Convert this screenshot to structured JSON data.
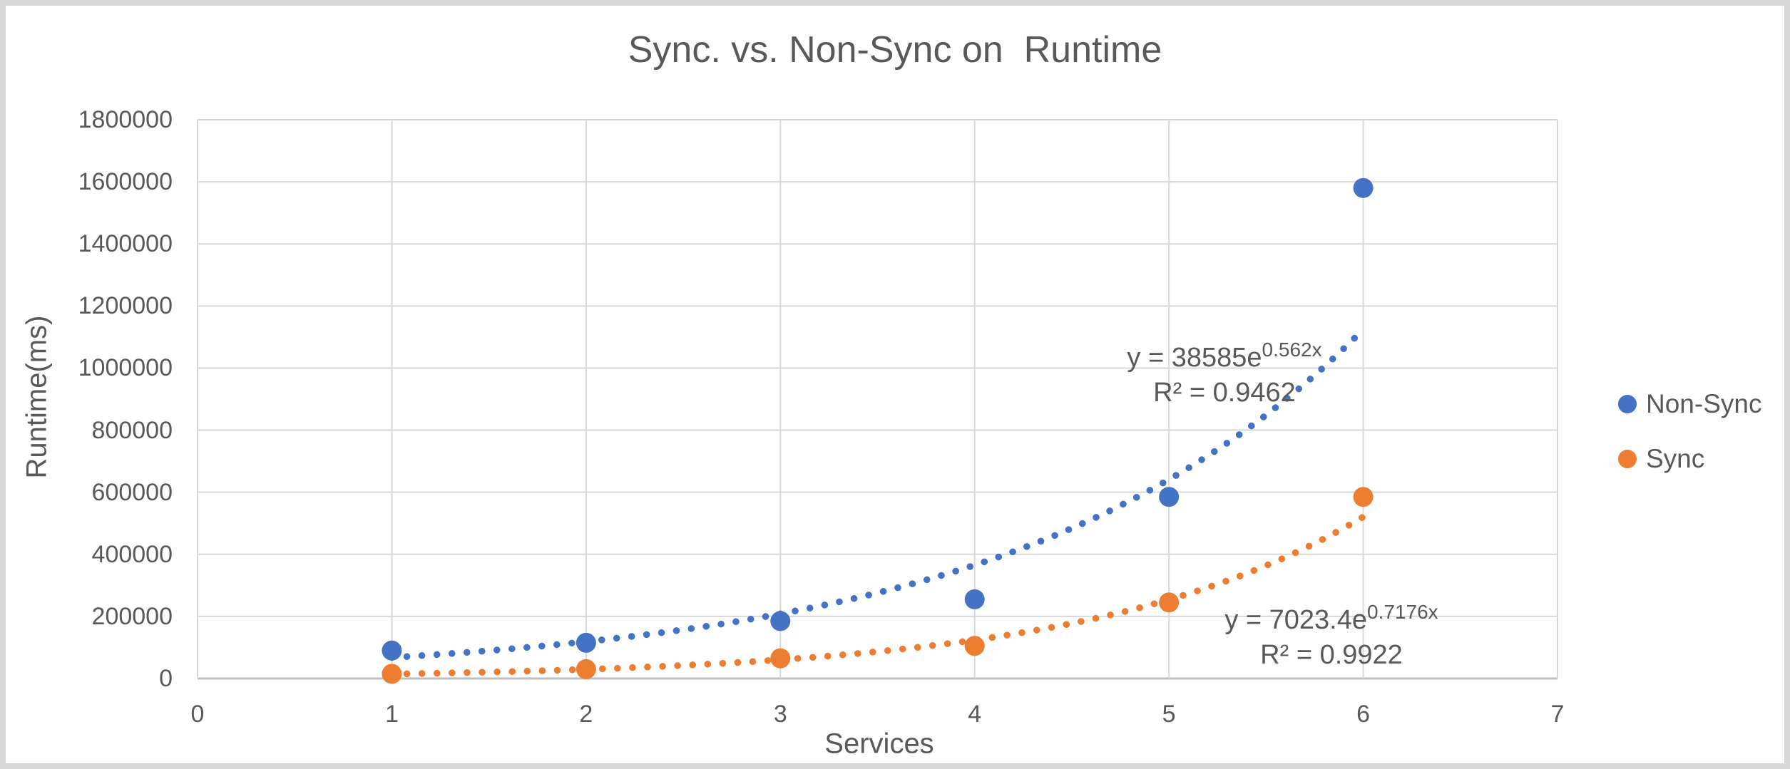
{
  "chart_data": {
    "type": "scatter",
    "title": "Sync. vs. Non-Sync on  Runtime",
    "xlabel": "Services",
    "ylabel": "Runtime(ms)",
    "xlim": [
      0,
      7
    ],
    "ylim": [
      0,
      1800000
    ],
    "x_ticks": [
      0,
      1,
      2,
      3,
      4,
      5,
      6,
      7
    ],
    "y_ticks": [
      0,
      200000,
      400000,
      600000,
      800000,
      1000000,
      1200000,
      1400000,
      1600000,
      1800000
    ],
    "grid": true,
    "legend_position": "right",
    "x": [
      1,
      2,
      3,
      4,
      5,
      6
    ],
    "series": [
      {
        "name": "Non-Sync",
        "color": "#4472C4",
        "values": [
          90000,
          115000,
          185000,
          255000,
          585000,
          1580000
        ],
        "trendline": {
          "type": "exponential",
          "a": 38585,
          "b": 0.562,
          "equation_base": "y = 38585e",
          "equation_exponent": "0.562x",
          "r_squared": "R² = 0.9462"
        }
      },
      {
        "name": "Sync",
        "color": "#ED7D31",
        "values": [
          15000,
          30000,
          65000,
          105000,
          245000,
          585000
        ],
        "trendline": {
          "type": "exponential",
          "a": 7023.4,
          "b": 0.7176,
          "equation_base": "y = 7023.4e",
          "equation_exponent": "0.7176x",
          "r_squared": "R² = 0.9922"
        }
      }
    ]
  },
  "colors": {
    "text": "#595959",
    "gridline": "#D9D9D9",
    "axis_line": "#BFBFBF",
    "frame_border": "#D8D8D8",
    "background": "#FFFFFF",
    "non_sync": "#4472C4",
    "sync": "#ED7D31"
  }
}
